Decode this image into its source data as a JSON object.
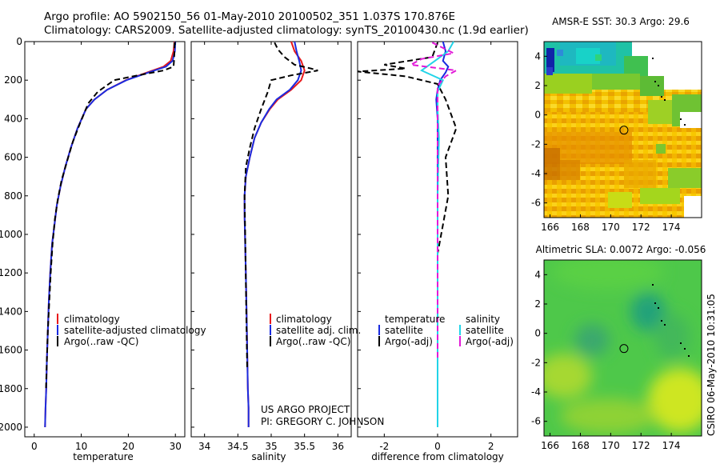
{
  "header": {
    "title_line1": "Argo profile: AO 5902150_56 01-May-2010 20100502_351 1.037S 170.876E",
    "title_line2": "Climatology: CARS2009. Satellite-adjusted climatology: synTS_20100430.nc (1.9d earlier)"
  },
  "project": {
    "line1": "US ARGO PROJECT",
    "line2": "PI: GREGORY C. JOHNSON"
  },
  "stamp": "CSIRO 06-May-2010 10:31:05",
  "colors": {
    "climatology": "#e8191b",
    "satellite": "#1a2be0",
    "argo": "#000000",
    "sal_satellite": "#22d4e8",
    "sal_argo": "#e21ad8"
  },
  "chart_data": [
    {
      "id": "temperature",
      "type": "line",
      "xlabel": "temperature",
      "ylabel": "",
      "xlim": [
        -2,
        32
      ],
      "ylim": [
        2050,
        0
      ],
      "x_ticks": [
        "0",
        "10",
        "20",
        "30"
      ],
      "x_tick_values": [
        0,
        10,
        20,
        30
      ],
      "y_ticks": [
        "0",
        "200",
        "400",
        "600",
        "800",
        "1000",
        "1200",
        "1400",
        "1600",
        "1800",
        "2000"
      ],
      "y_tick_values": [
        0,
        200,
        400,
        600,
        800,
        1000,
        1200,
        1400,
        1600,
        1800,
        2000
      ],
      "legend": [
        "climatology",
        "satellite-adjusted climatology",
        "Argo(..raw -QC)"
      ],
      "legend_position": "lower-middle",
      "series": [
        {
          "name": "climatology",
          "color_key": "climatology",
          "dash": false,
          "x": [
            29.8,
            29.6,
            29.0,
            27.5,
            24.0,
            19.5,
            15.5,
            12.8,
            11.0,
            9.2,
            7.8,
            6.6,
            5.6,
            4.8,
            4.3,
            3.8,
            3.4,
            3.1,
            2.9,
            2.7,
            2.55,
            2.4,
            2.3
          ],
          "y": [
            0,
            50,
            100,
            130,
            160,
            200,
            250,
            300,
            350,
            450,
            550,
            650,
            750,
            850,
            950,
            1050,
            1200,
            1350,
            1500,
            1650,
            1800,
            1900,
            2000
          ]
        },
        {
          "name": "satellite-adjusted climatology",
          "color_key": "satellite",
          "dash": false,
          "x": [
            30.0,
            29.9,
            29.4,
            28.0,
            24.3,
            19.6,
            15.5,
            12.8,
            11.0,
            9.2,
            7.8,
            6.6,
            5.6,
            4.8,
            4.3,
            3.8,
            3.4,
            3.1,
            2.9,
            2.7,
            2.55,
            2.4,
            2.3
          ],
          "y": [
            0,
            50,
            100,
            130,
            160,
            200,
            250,
            300,
            350,
            450,
            550,
            650,
            750,
            850,
            950,
            1050,
            1200,
            1350,
            1500,
            1650,
            1800,
            1900,
            2000
          ]
        },
        {
          "name": "Argo(..raw -QC)",
          "color_key": "argo",
          "dash": true,
          "x": [
            29.8,
            29.8,
            29.7,
            29.6,
            27.5,
            22.0,
            17.0,
            13.5,
            11.5,
            9.8,
            8.2,
            7.0,
            5.8,
            5.0,
            4.4,
            3.9,
            3.5,
            3.2,
            2.9,
            2.7,
            2.5
          ],
          "y": [
            5,
            50,
            100,
            130,
            150,
            175,
            200,
            260,
            320,
            420,
            520,
            620,
            720,
            820,
            920,
            1050,
            1200,
            1350,
            1500,
            1650,
            1800
          ]
        }
      ]
    },
    {
      "id": "salinity",
      "type": "line",
      "xlabel": "salinity",
      "ylabel": "",
      "xlim": [
        33.8,
        36.2
      ],
      "ylim": [
        2050,
        0
      ],
      "x_ticks": [
        "34",
        "34.5",
        "35",
        "35.5",
        "36"
      ],
      "x_tick_values": [
        34,
        34.5,
        35,
        35.5,
        36
      ],
      "legend": [
        "climatology",
        "satellite adj. clim.",
        "Argo(..raw -QC)"
      ],
      "legend_position": "lower-middle",
      "series": [
        {
          "name": "climatology",
          "color_key": "climatology",
          "dash": false,
          "x": [
            35.3,
            35.35,
            35.45,
            35.5,
            35.45,
            35.3,
            35.1,
            34.98,
            34.85,
            34.75,
            34.68,
            34.62,
            34.6,
            34.6,
            34.61,
            34.62,
            34.63,
            34.64,
            34.65,
            34.66,
            34.66
          ],
          "y": [
            0,
            50,
            100,
            150,
            200,
            250,
            300,
            350,
            420,
            500,
            600,
            700,
            800,
            900,
            1050,
            1200,
            1400,
            1600,
            1800,
            1900,
            2000
          ]
        },
        {
          "name": "satellite adj. clim.",
          "color_key": "satellite",
          "dash": false,
          "x": [
            35.35,
            35.38,
            35.42,
            35.45,
            35.4,
            35.28,
            35.08,
            34.97,
            34.85,
            34.75,
            34.68,
            34.62,
            34.6,
            34.6,
            34.61,
            34.62,
            34.63,
            34.64,
            34.65,
            34.66,
            34.66
          ],
          "y": [
            0,
            50,
            100,
            150,
            200,
            250,
            300,
            350,
            420,
            500,
            600,
            700,
            800,
            900,
            1050,
            1200,
            1400,
            1600,
            1800,
            1900,
            2000
          ]
        },
        {
          "name": "Argo(..raw -QC)",
          "color_key": "argo",
          "dash": true,
          "x": [
            35.05,
            35.1,
            35.2,
            35.35,
            35.6,
            35.7,
            35.3,
            35.0,
            34.95,
            34.85,
            34.75,
            34.68,
            34.62,
            34.6,
            34.61,
            34.62,
            34.63,
            34.64
          ],
          "y": [
            5,
            40,
            80,
            120,
            140,
            150,
            175,
            200,
            260,
            350,
            450,
            550,
            650,
            800,
            1000,
            1250,
            1500,
            1700
          ]
        }
      ]
    },
    {
      "id": "difference",
      "type": "line",
      "xlabel": "difference from climatology",
      "ylabel": "",
      "xlim": [
        -3,
        3
      ],
      "ylim": [
        2050,
        0
      ],
      "x_ticks": [
        "-2",
        "0",
        "2"
      ],
      "x_tick_values": [
        -2,
        0,
        2
      ],
      "legend": [
        "temperature",
        "satellite",
        "Argo(-adj)",
        "salinity",
        "satellite",
        "Argo(-adj)"
      ],
      "legend_position": "lower-middle",
      "series": [
        {
          "name": "temperature satellite",
          "color_key": "satellite",
          "dash": false,
          "x": [
            0.2,
            0.3,
            0.2,
            0.4,
            0.3,
            0.1,
            0.0,
            -0.05,
            0.0,
            0.0,
            0.0,
            0.0,
            0.0,
            0.0,
            0.0,
            0.0,
            0.0
          ],
          "y": [
            0,
            50,
            100,
            130,
            160,
            200,
            250,
            300,
            400,
            500,
            700,
            900,
            1100,
            1300,
            1500,
            1800,
            2000
          ]
        },
        {
          "name": "temperature Argo(-adj)",
          "color_key": "argo",
          "dash": true,
          "x": [
            0.0,
            -0.2,
            -2.0,
            -1.2,
            -3.0,
            -1.2,
            0.0,
            0.3,
            0.7,
            0.3,
            0.4,
            0.2,
            0.0,
            0.0,
            0.0,
            0.0
          ],
          "y": [
            5,
            80,
            120,
            140,
            155,
            180,
            220,
            300,
            450,
            600,
            800,
            950,
            1100,
            1300,
            1500,
            1800
          ]
        },
        {
          "name": "salinity satellite",
          "color_key": "sal_satellite",
          "dash": false,
          "x": [
            0.6,
            0.4,
            -0.1,
            -0.6,
            0.2,
            0.0,
            0.0,
            0.05,
            0.0,
            0.0,
            0.0,
            0.0,
            0.0
          ],
          "y": [
            0,
            50,
            100,
            150,
            200,
            260,
            350,
            500,
            800,
            1100,
            1400,
            1700,
            2000
          ]
        },
        {
          "name": "salinity Argo(-adj)",
          "color_key": "sal_argo",
          "dash": true,
          "x": [
            -0.2,
            0.6,
            -0.6,
            -1.0,
            0.7,
            0.3,
            0.0,
            0.0,
            0.0,
            0.0,
            0.0
          ],
          "y": [
            5,
            60,
            90,
            120,
            150,
            180,
            230,
            400,
            800,
            1200,
            1650
          ]
        }
      ]
    },
    {
      "id": "sst_map",
      "type": "heatmap",
      "title": "AMSR-E SST: 30.3  Argo: 29.6",
      "xlim": [
        165.6,
        176
      ],
      "ylim": [
        -7,
        5
      ],
      "x_ticks": [
        "166",
        "168",
        "170",
        "172",
        "174"
      ],
      "x_tick_values": [
        166,
        168,
        170,
        172,
        174
      ],
      "y_ticks": [
        "4",
        "2",
        "0",
        "-2",
        "-4",
        "-6"
      ],
      "y_tick_values": [
        4,
        2,
        0,
        -2,
        -4,
        -6
      ],
      "float_position": {
        "lon": 170.876,
        "lat": -1.037
      }
    },
    {
      "id": "sla_map",
      "type": "heatmap",
      "title": "Altimetric SLA: 0.0072  Argo: -0.056",
      "xlim": [
        165.6,
        176
      ],
      "ylim": [
        -7,
        5
      ],
      "x_ticks": [
        "166",
        "168",
        "170",
        "172",
        "174"
      ],
      "x_tick_values": [
        166,
        168,
        170,
        172,
        174
      ],
      "y_ticks": [
        "4",
        "2",
        "0",
        "-2",
        "-4",
        "-6"
      ],
      "y_tick_values": [
        4,
        2,
        0,
        -2,
        -4,
        -6
      ],
      "float_position": {
        "lon": 170.876,
        "lat": -1.037
      }
    }
  ]
}
